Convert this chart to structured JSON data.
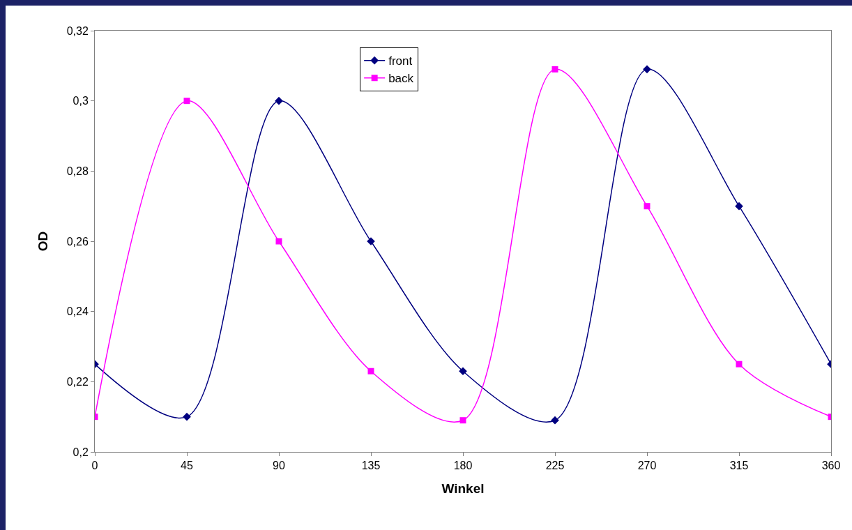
{
  "chart_data": {
    "type": "line",
    "xlabel": "Winkel",
    "ylabel": "OD",
    "x": [
      0,
      45,
      90,
      135,
      180,
      225,
      270,
      315,
      360
    ],
    "series": [
      {
        "name": "front",
        "color": "#000080",
        "marker": "diamond",
        "values": [
          0.225,
          0.21,
          0.3,
          0.26,
          0.223,
          0.209,
          0.309,
          0.27,
          0.225
        ]
      },
      {
        "name": "back",
        "color": "#ff00ff",
        "marker": "square",
        "values": [
          0.21,
          0.3,
          0.26,
          0.223,
          0.209,
          0.309,
          0.27,
          0.225,
          0.21
        ]
      }
    ],
    "xlim": [
      0,
      360
    ],
    "xticks": [
      0,
      45,
      90,
      135,
      180,
      225,
      270,
      315,
      360
    ],
    "ylim": [
      0.2,
      0.32
    ],
    "yticks": [
      {
        "value": 0.2,
        "label": "0,2"
      },
      {
        "value": 0.22,
        "label": "0,22"
      },
      {
        "value": 0.24,
        "label": "0,24"
      },
      {
        "value": 0.26,
        "label": "0,26"
      },
      {
        "value": 0.28,
        "label": "0,28"
      },
      {
        "value": 0.3,
        "label": "0,3"
      },
      {
        "value": 0.32,
        "label": "0,32"
      }
    ],
    "grid": false,
    "legend": "top",
    "line_style": "solid"
  }
}
